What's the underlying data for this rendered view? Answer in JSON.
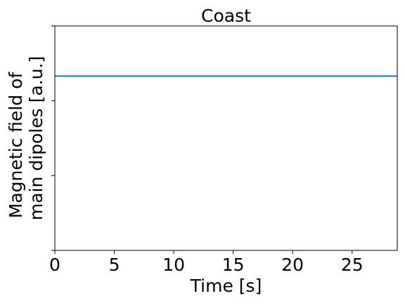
{
  "chart_data": {
    "type": "line",
    "title": "Coast",
    "xlabel": "Time [s]",
    "ylabel_lines": [
      "Magnetic field of",
      "main dipoles [a.u.]"
    ],
    "xlim": [
      0,
      28.8
    ],
    "ylim": [
      0,
      3
    ],
    "xticks": [
      0,
      5,
      10,
      15,
      20,
      25
    ],
    "xtick_labels": [
      "0",
      "5",
      "10",
      "15",
      "20",
      "25"
    ],
    "yticks": [
      0,
      1,
      2,
      3
    ],
    "ytick_labels": [
      "",
      "",
      "",
      ""
    ],
    "grid": false,
    "series": [
      {
        "color": "#1f77b4",
        "x": [
          0,
          28.8
        ],
        "y": [
          2.33,
          2.33
        ]
      }
    ]
  }
}
